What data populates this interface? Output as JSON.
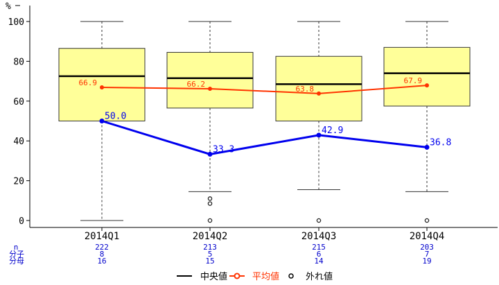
{
  "chart_data": {
    "type": "box",
    "ylabel": "%",
    "ylim": [
      0,
      100
    ],
    "yticks": [
      0,
      20,
      40,
      60,
      80,
      100
    ],
    "categories": [
      "2014Q1",
      "2014Q2",
      "2014Q3",
      "2014Q4"
    ],
    "boxes": [
      {
        "whisker_low": 0,
        "q1": 50,
        "median": 72.5,
        "q3": 86.5,
        "whisker_high": 100,
        "outliers": []
      },
      {
        "whisker_low": 14.5,
        "q1": 56.5,
        "median": 71.5,
        "q3": 84.5,
        "whisker_high": 100,
        "outliers": [
          8.5,
          11,
          0
        ]
      },
      {
        "whisker_low": 15.5,
        "q1": 50,
        "median": 68.5,
        "q3": 82.5,
        "whisker_high": 100,
        "outliers": [
          0
        ]
      },
      {
        "whisker_low": 14.5,
        "q1": 57.5,
        "median": 74,
        "q3": 87,
        "whisker_high": 100,
        "outliers": [
          0
        ]
      }
    ],
    "series": [
      {
        "name": "平均値",
        "values": [
          66.9,
          66.2,
          63.8,
          67.9
        ],
        "labels": [
          "66.9",
          "66.2",
          "63.8",
          "67.9"
        ],
        "color": "#ff3300"
      },
      {
        "values": [
          50.0,
          33.3,
          42.9,
          36.8
        ],
        "labels": [
          "50.0",
          "33.3",
          "42.9",
          "36.8"
        ],
        "color": "#0000ee"
      }
    ],
    "stats_table": {
      "row_labels": [
        "n",
        "分子",
        "分母"
      ],
      "rows": [
        [
          "222",
          "213",
          "215",
          "203"
        ],
        [
          "8",
          "5",
          "6",
          "7"
        ],
        [
          "16",
          "15",
          "14",
          "19"
        ]
      ]
    },
    "legend": [
      {
        "label": "中央値",
        "color": "#000000"
      },
      {
        "label": "平均値",
        "color": "#ff3300"
      },
      {
        "label": "外れ値",
        "color": "#000000"
      }
    ],
    "legend_position": "bottom",
    "colors": {
      "box_fill": "#ffff99",
      "box_stroke": "#333333",
      "stat_text": "#0000cc"
    }
  }
}
